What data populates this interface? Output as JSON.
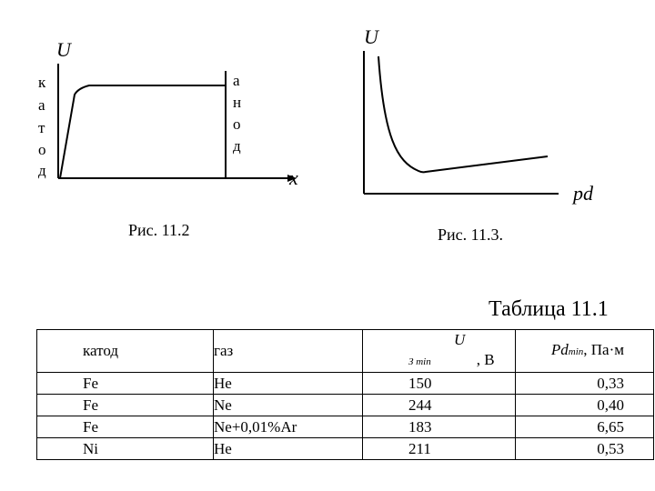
{
  "figure1": {
    "y_axis_label": "U",
    "x_axis_label": "x",
    "cathode_letters": [
      "к",
      "а",
      "т",
      "о",
      "д"
    ],
    "anode_letters": [
      "а",
      "н",
      "о",
      "д"
    ],
    "caption": "Рис. 11.2"
  },
  "figure2": {
    "y_axis_label": "U",
    "x_axis_label": "pd",
    "caption": "Рис. 11.3."
  },
  "table": {
    "title": "Таблица 11.1",
    "headers": {
      "cathode": "катод",
      "gas": "газ",
      "voltage_prefix": "U",
      "voltage_sub": "З min",
      "voltage_unit": ", В",
      "pd_prefix": "Pd",
      "pd_sub": "min",
      "pd_unit": ", Па·м"
    },
    "rows": [
      {
        "cathode": "Fe",
        "gas": "He",
        "u": "150",
        "pd": "0,33"
      },
      {
        "cathode": "Fe",
        "gas": "Ne",
        "u": "244",
        "pd": "0,40"
      },
      {
        "cathode": "Fe",
        "gas": "Ne+0,01%Ar",
        "u": "183",
        "pd": "6,65"
      },
      {
        "cathode": "Ni",
        "gas": "He",
        "u": "211",
        "pd": "0,53"
      }
    ]
  }
}
